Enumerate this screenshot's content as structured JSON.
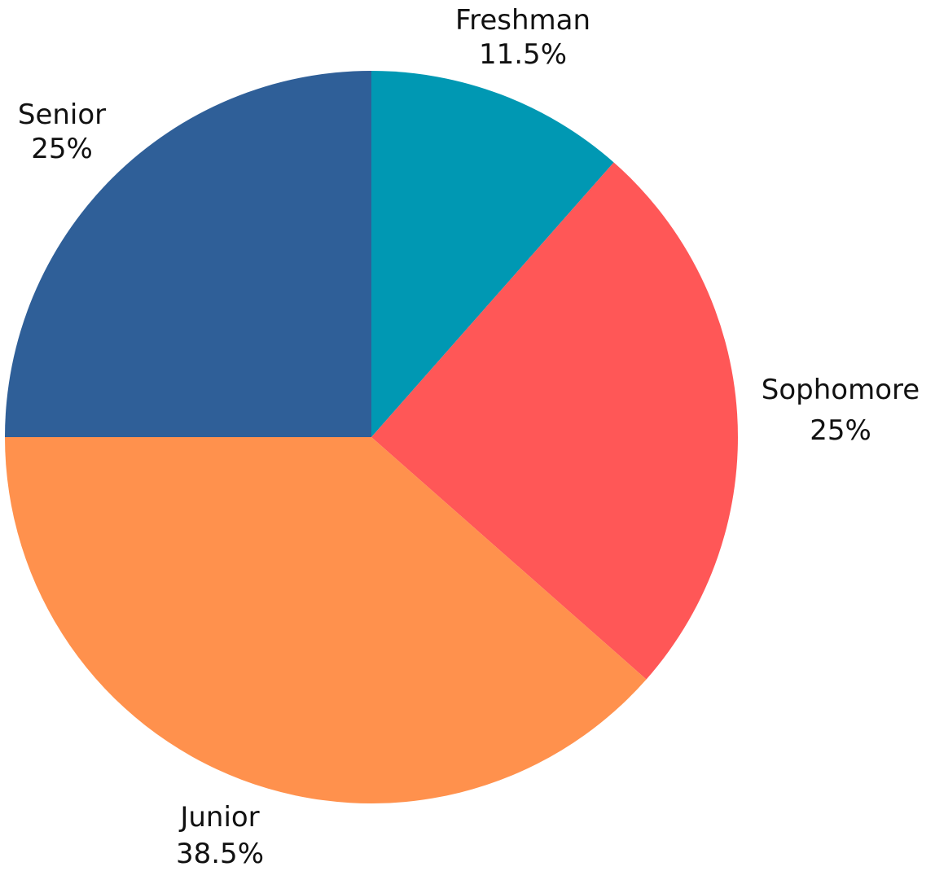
{
  "chart_data": {
    "type": "pie",
    "categories": [
      "Freshman",
      "Sophomore",
      "Junior",
      "Senior"
    ],
    "values": [
      11.5,
      25,
      38.5,
      25
    ],
    "value_labels": [
      "11.5%",
      "25%",
      "38.5%",
      "25%"
    ],
    "colors": [
      "#0098b3",
      "#ff5757",
      "#ff914d",
      "#2f5f98"
    ],
    "start_angle": "top",
    "direction": "clockwise",
    "title": ""
  }
}
